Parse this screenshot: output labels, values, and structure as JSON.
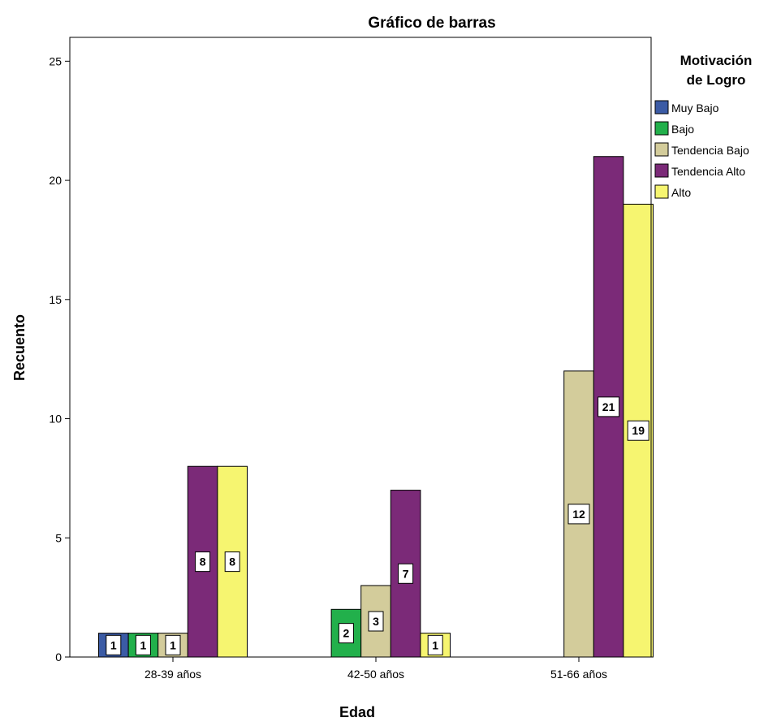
{
  "chart_data": {
    "type": "bar",
    "title": "Gráfico de barras",
    "xlabel": "Edad",
    "ylabel": "Recuento",
    "categories": [
      "28-39 años",
      "42-50 años",
      "51-66 años"
    ],
    "ylim": [
      0,
      26
    ],
    "yticks": [
      0,
      5,
      10,
      15,
      20,
      25
    ],
    "grid": false,
    "legend": {
      "title_lines": [
        "Motivación",
        "de Logro"
      ],
      "placement": "right"
    },
    "series": [
      {
        "name": "Muy Bajo",
        "color": "#3b5ba5",
        "values": [
          1,
          0,
          0
        ]
      },
      {
        "name": "Bajo",
        "color": "#22b04b",
        "values": [
          1,
          2,
          0
        ]
      },
      {
        "name": "Tendencia Bajo",
        "color": "#d3cc9b",
        "values": [
          1,
          3,
          12
        ]
      },
      {
        "name": "Tendencia Alto",
        "color": "#7b2a78",
        "values": [
          8,
          7,
          21
        ]
      },
      {
        "name": "Alto",
        "color": "#f6f570",
        "values": [
          8,
          1,
          19
        ]
      }
    ]
  }
}
